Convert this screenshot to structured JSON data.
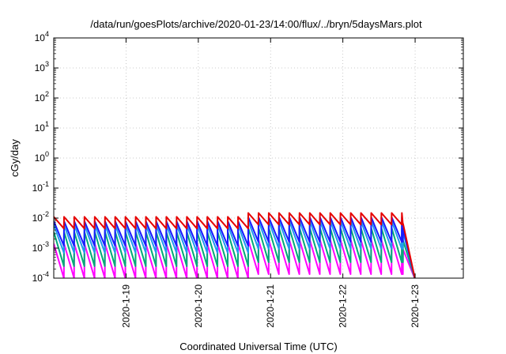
{
  "chart_data": {
    "type": "line",
    "title": "/data/run/goesPlots/archive/2020-01-23/14:00/flux/../bryn/5daysMars.plot",
    "xlabel": "Coordinated Universal Time (UTC)",
    "ylabel": "cGy/day",
    "xlim": [
      "2020-01-18 00:00",
      "2020-01-23 16:00"
    ],
    "xticks": [
      "2020-1-19",
      "2020-1-20",
      "2020-1-21",
      "2020-1-22",
      "2020-1-23"
    ],
    "ylim": [
      0.0001,
      10000
    ],
    "y_scale": "log",
    "yticks": [
      {
        "base": "10",
        "exp": "-4"
      },
      {
        "base": "10",
        "exp": "-3"
      },
      {
        "base": "10",
        "exp": "-2"
      },
      {
        "base": "10",
        "exp": "-1"
      },
      {
        "base": "10",
        "exp": "0"
      },
      {
        "base": "10",
        "exp": "1"
      },
      {
        "base": "10",
        "exp": "2"
      },
      {
        "base": "10",
        "exp": "3"
      },
      {
        "base": "10",
        "exp": "4"
      }
    ],
    "grid": true,
    "legend": "none",
    "sawtooth_period_hours": 3.4,
    "series": [
      {
        "color": "#e60000",
        "peak": 0.011,
        "trough": 0.0045,
        "end_peak": 0.0065
      },
      {
        "color": "#1a1aff",
        "peak": 0.008,
        "trough": 0.0012,
        "end_peak": 0.0045
      },
      {
        "color": "#2299ee",
        "peak": 0.006,
        "trough": 0.0007,
        "end_peak": 0.0035
      },
      {
        "color": "#00aa77",
        "peak": 0.0035,
        "trough": 0.00025,
        "end_peak": 0.0018
      },
      {
        "color": "#ff00ff",
        "peak": 0.0014,
        "trough": 0.0001,
        "end_peak": 0.0009
      }
    ]
  }
}
